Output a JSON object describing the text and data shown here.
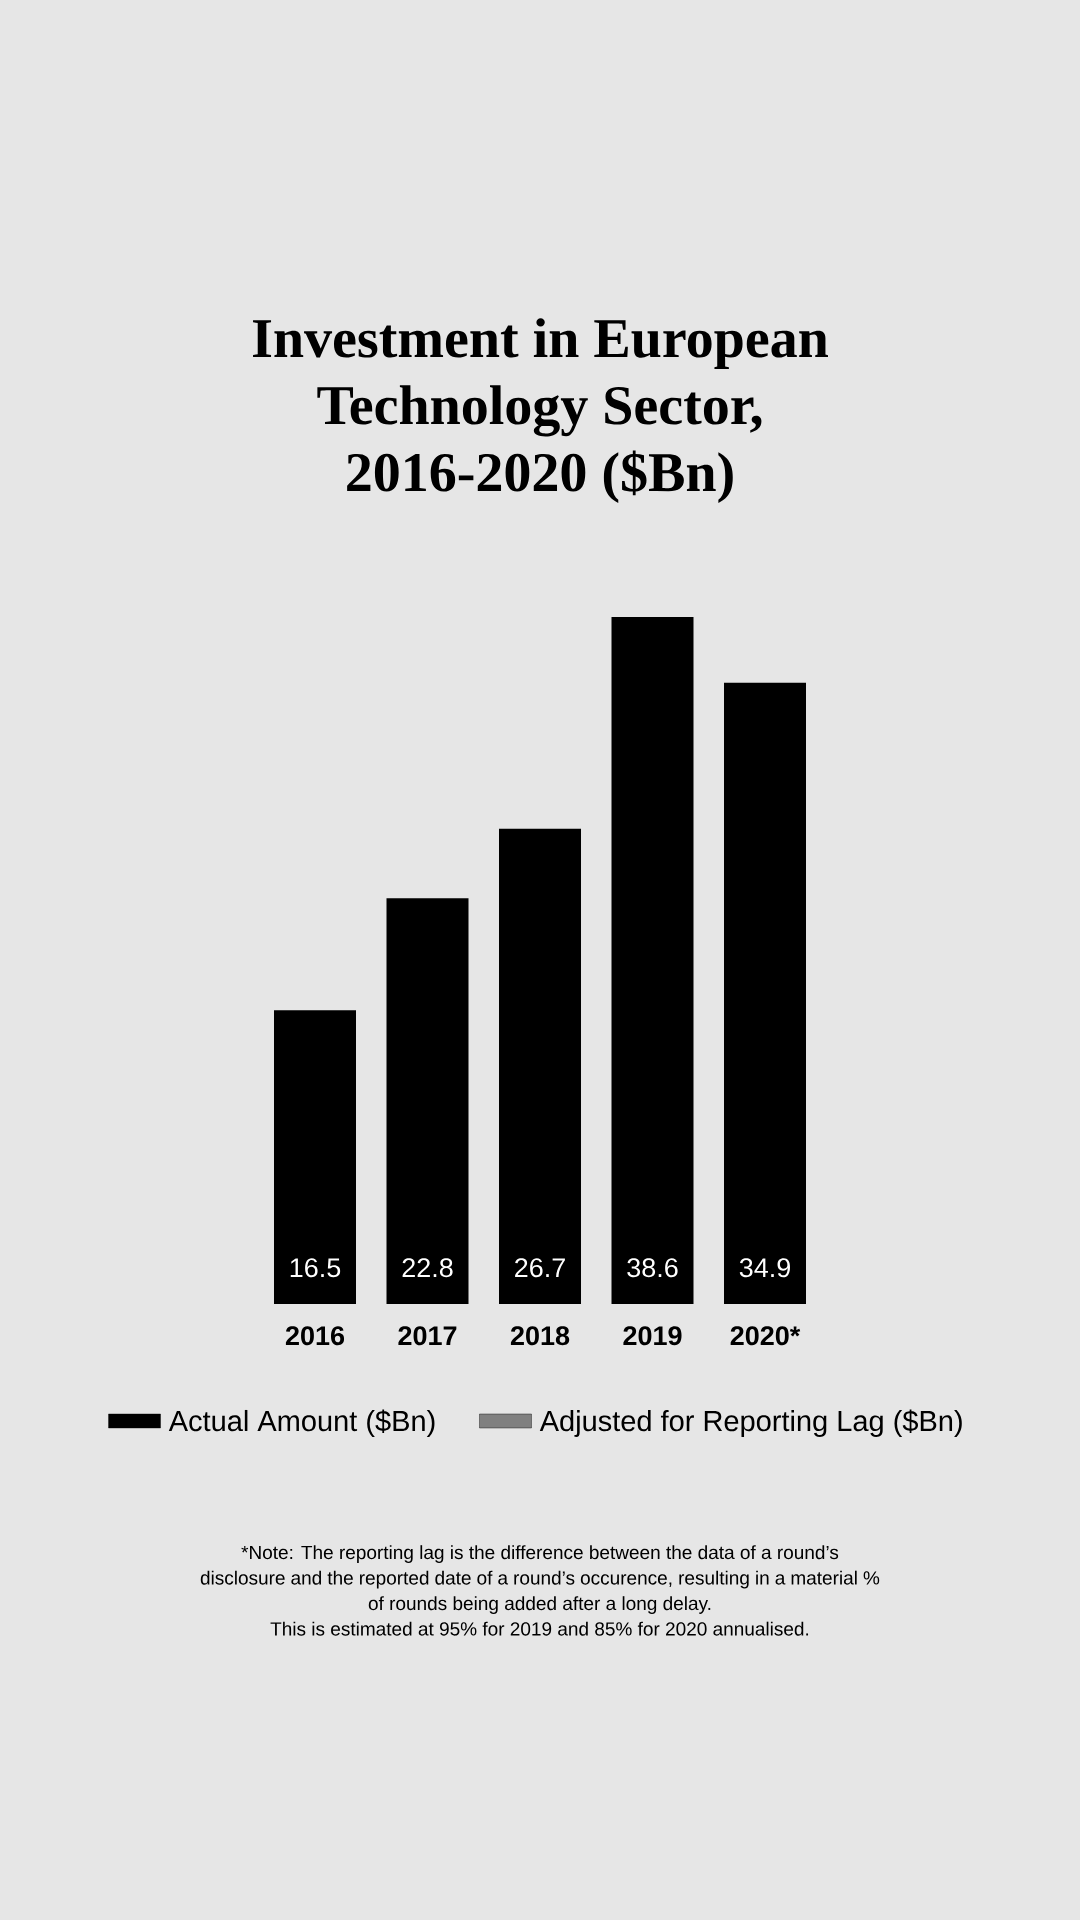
{
  "chart_data": {
    "type": "bar",
    "title": "Investment in European Technology Sector, 2016-2020 ($Bn)",
    "categories": [
      "2016",
      "2017",
      "2018",
      "2019",
      "2020*"
    ],
    "series": [
      {
        "name": "Actual Amount ($Bn)",
        "color": "#000000",
        "values": [
          16.5,
          22.8,
          26.7,
          38.6,
          34.9
        ]
      },
      {
        "name": "Adjusted for Reporting Lag ($Bn)",
        "color": "#808080",
        "values": [
          null,
          null,
          null,
          null,
          null
        ]
      }
    ],
    "data_labels": true,
    "legend": "bottom",
    "annotations": [
      "*Note: The reporting lag is the difference between the data of a round’s disclosure and the reported date of a round’s occurence, resulting in a material % of rounds being added after a long delay.",
      "This is estimated at 95% for 2019 and 85% for 2020 annualised."
    ]
  }
}
